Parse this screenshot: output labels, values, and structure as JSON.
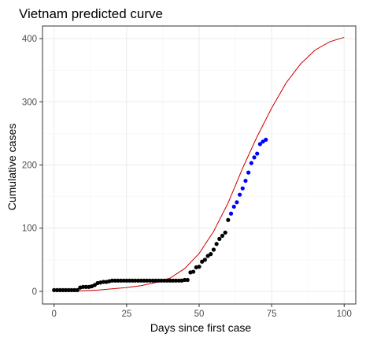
{
  "chart_data": {
    "type": "scatter",
    "title": "Vietnam predicted curve",
    "xlabel": "Days since first case",
    "ylabel": "Cumulative cases",
    "xlim": [
      -4,
      104
    ],
    "ylim": [
      -20,
      420
    ],
    "x_ticks": [
      0,
      25,
      50,
      75,
      100
    ],
    "y_ticks": [
      0,
      100,
      200,
      300,
      400
    ],
    "x_tick_labels": [
      "0",
      "25",
      "50",
      "75",
      "100"
    ],
    "y_tick_labels": [
      "0",
      "100",
      "200",
      "300",
      "400"
    ],
    "grid": true,
    "legend": "none",
    "colors": {
      "observed": "#000000",
      "recent": "#0000ff",
      "fit": "#cc0000",
      "panel_border": "#333333",
      "grid": "#ebebeb"
    },
    "series": [
      {
        "role": "observed",
        "marker": "point",
        "x": [
          0,
          1,
          2,
          3,
          4,
          5,
          6,
          7,
          8,
          9,
          10,
          11,
          12,
          13,
          14,
          15,
          16,
          17,
          18,
          19,
          20,
          21,
          22,
          23,
          24,
          25,
          26,
          27,
          28,
          29,
          30,
          31,
          32,
          33,
          34,
          35,
          36,
          37,
          38,
          39,
          40,
          41,
          42,
          43,
          44,
          45,
          46,
          47,
          48,
          49,
          50,
          51,
          52,
          53,
          54,
          55,
          56,
          57,
          58,
          59,
          60
        ],
        "y": [
          2,
          2,
          2,
          2,
          2,
          2,
          2,
          2,
          2,
          6,
          7,
          7,
          7,
          8,
          10,
          13,
          14,
          15,
          15,
          16,
          17,
          17,
          17,
          17,
          17,
          17,
          17,
          17,
          17,
          17,
          17,
          17,
          17,
          17,
          17,
          17,
          17,
          17,
          17,
          17,
          17,
          17,
          17,
          17,
          17,
          18,
          18,
          30,
          31,
          38,
          39,
          47,
          50,
          56,
          59,
          66,
          75,
          83,
          88,
          93,
          113
        ]
      },
      {
        "role": "recent",
        "marker": "point",
        "x": [
          61,
          62,
          63,
          64,
          65,
          66,
          67,
          68,
          69,
          70,
          71,
          72,
          73
        ],
        "y": [
          123,
          134,
          141,
          153,
          163,
          175,
          188,
          203,
          212,
          218,
          233,
          237,
          240
        ]
      },
      {
        "role": "fit",
        "marker": "line",
        "x": [
          0,
          5,
          10,
          15,
          20,
          25,
          30,
          35,
          40,
          45,
          50,
          55,
          60,
          65,
          70,
          75,
          80,
          85,
          90,
          95,
          100
        ],
        "y": [
          0,
          0,
          1,
          2,
          4,
          6,
          9,
          14,
          21,
          36,
          60,
          95,
          140,
          195,
          245,
          290,
          330,
          360,
          382,
          395,
          402
        ]
      }
    ]
  }
}
